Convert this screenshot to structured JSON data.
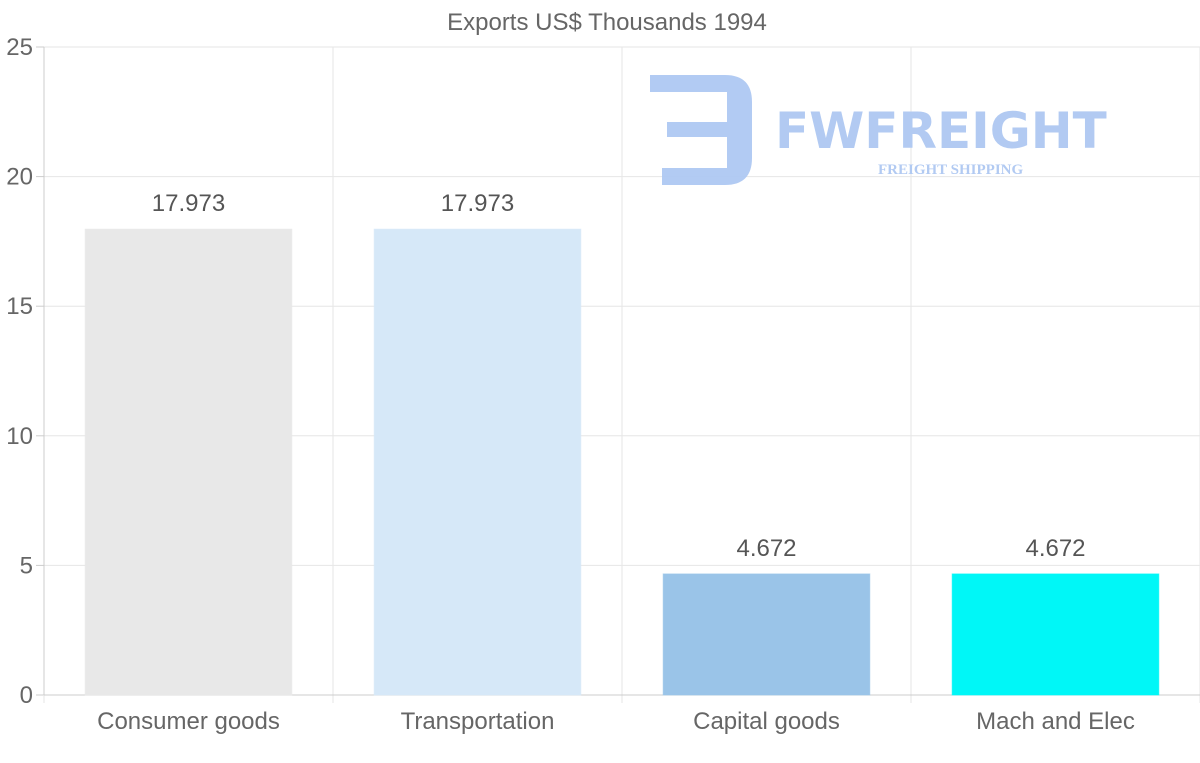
{
  "chart_data": {
    "type": "bar",
    "title": "Exports US$ Thousands 1994",
    "categories": [
      "Consumer goods",
      "Transportation",
      "Capital goods",
      "Mach and Elec"
    ],
    "values": [
      17.973,
      17.973,
      4.672,
      4.672
    ],
    "data_labels": [
      "17.973",
      "17.973",
      "4.672",
      "4.672"
    ],
    "colors": [
      "#e8e8e8",
      "#d6e8f8",
      "#9ac4e8",
      "#00f7f7"
    ],
    "ylim": [
      0,
      25
    ],
    "yticks": [
      0,
      5,
      10,
      15,
      20,
      25
    ],
    "xlabel": "",
    "ylabel": "",
    "grid": true,
    "legend": "none"
  },
  "watermark": {
    "brand": "FWFREIGHT",
    "tagline": "FREIGHT SHIPPING",
    "color": "#aec8f2"
  }
}
